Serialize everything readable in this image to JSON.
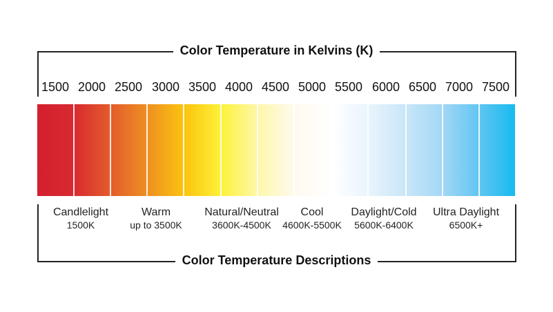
{
  "top_title": "Color Temperature in Kelvins (K)",
  "bottom_title": "Color Temperature Descriptions",
  "ticks": [
    "1500",
    "2000",
    "2500",
    "3000",
    "3500",
    "4000",
    "4500",
    "5000",
    "5500",
    "6000",
    "6500",
    "7000",
    "7500"
  ],
  "descriptions": [
    {
      "name": "Candlelight",
      "range": "1500K"
    },
    {
      "name": "Warm",
      "range": "up to 3500K"
    },
    {
      "name": "Natural/Neutral",
      "range": "3600K-4500K"
    },
    {
      "name": "Cool",
      "range": "4600K-5500K"
    },
    {
      "name": "Daylight/Cold",
      "range": "5600K-6400K"
    },
    {
      "name": "Ultra Daylight",
      "range": "6500K+"
    }
  ],
  "colors": {
    "warm_end": "#d41f2f",
    "neutral": "#ffffff",
    "cool_end": "#16bbee"
  }
}
